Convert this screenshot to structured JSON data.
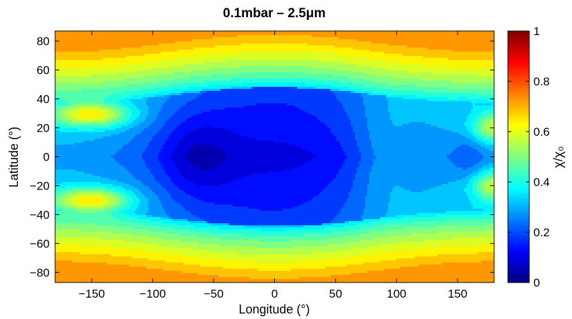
{
  "chart_data": {
    "type": "heatmap",
    "title": "0.1mbar – 2.5μm",
    "xlabel": "Longitude (°)",
    "ylabel": "Latitude (°)",
    "xlim": [
      -180,
      180
    ],
    "ylim": [
      -87,
      87
    ],
    "xticks": [
      "−150",
      "−100",
      "−50",
      "0",
      "50",
      "100",
      "150"
    ],
    "xtick_values": [
      -150,
      -100,
      -50,
      0,
      50,
      100,
      150
    ],
    "yticks": [
      "80",
      "60",
      "40",
      "20",
      "0",
      "−20",
      "−40",
      "−60",
      "−80"
    ],
    "ytick_values": [
      80,
      60,
      40,
      20,
      0,
      -20,
      -40,
      -60,
      -80
    ],
    "colorbar": {
      "label": "χ/χ₀",
      "range": [
        0,
        1
      ],
      "ticks": [
        "1",
        "0.8",
        "0.6",
        "0.4",
        "0.2",
        "0"
      ],
      "tick_values": [
        1,
        0.8,
        0.6,
        0.4,
        0.2,
        0
      ],
      "colormap": "jet"
    },
    "regions": [
      {
        "name": "polar-caps",
        "latitude_abs_min": 60,
        "value": 0.72
      },
      {
        "name": "mid-latitude-band",
        "latitude_abs_range": [
          40,
          60
        ],
        "value": 0.55
      },
      {
        "name": "equatorial-minimum",
        "lon_range": [
          -80,
          -40
        ],
        "lat_range": [
          -25,
          25
        ],
        "value": 0.08
      },
      {
        "name": "equatorial-plateau",
        "lon_range": [
          70,
          110
        ],
        "lat_range": [
          -30,
          30
        ],
        "value": 0.33
      },
      {
        "name": "west-tongues",
        "lon_range": [
          -175,
          -130
        ],
        "lat": [
          30,
          -30
        ],
        "value": 0.5
      },
      {
        "name": "east-tongues",
        "lon_range": [
          160,
          180
        ],
        "lat": [
          20,
          -20
        ],
        "value": 0.45
      }
    ]
  }
}
